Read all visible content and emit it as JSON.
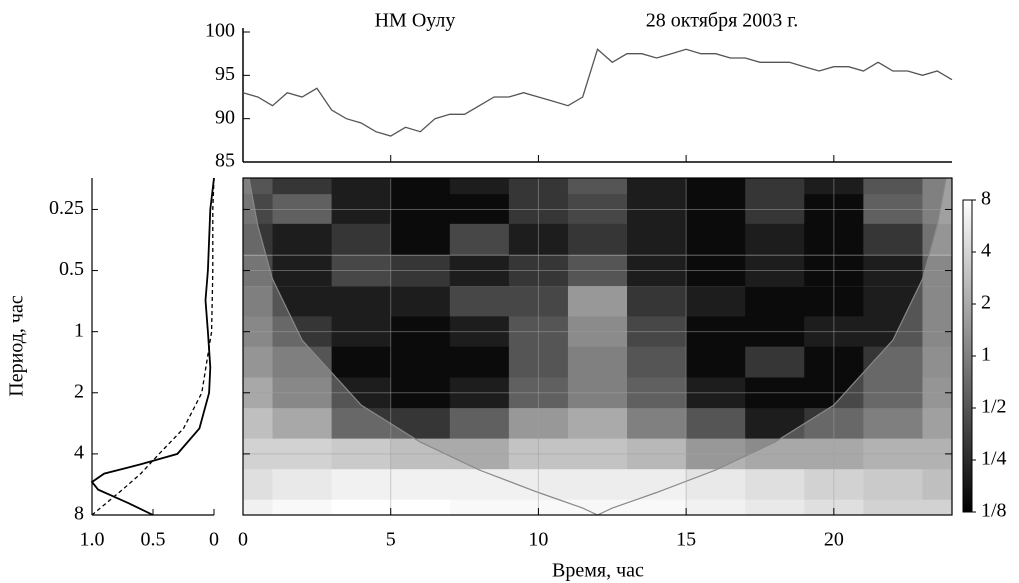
{
  "chart_data": [
    {
      "type": "line",
      "title": "НМ Оулу",
      "subtitle": "28 октября 2003 г.",
      "color": "#555555",
      "x": [
        0,
        0.5,
        1,
        1.5,
        2,
        2.5,
        3,
        3.5,
        4,
        4.5,
        5,
        5.5,
        6,
        6.5,
        7,
        7.5,
        8,
        8.5,
        9,
        9.5,
        10,
        10.5,
        11,
        11.5,
        12,
        12.5,
        13,
        13.5,
        14,
        14.5,
        15,
        15.5,
        16,
        16.5,
        17,
        17.5,
        18,
        18.5,
        19,
        19.5,
        20,
        20.5,
        21,
        21.5,
        22,
        22.5,
        23,
        23.5,
        24
      ],
      "values": [
        93,
        92.5,
        91.5,
        93,
        92.5,
        93.5,
        91,
        90,
        89.5,
        88.5,
        88,
        89,
        88.5,
        90,
        90.5,
        90.5,
        91.5,
        92.5,
        92.5,
        93,
        92.5,
        92,
        91.5,
        92.5,
        98,
        96.5,
        97.5,
        97.5,
        97,
        97.5,
        98,
        97.5,
        97.5,
        97,
        97,
        96.5,
        96.5,
        96.5,
        96,
        95.5,
        96,
        96,
        95.5,
        96.5,
        95.5,
        95.5,
        95,
        95.5,
        94.5
      ],
      "xlim": [
        0,
        24
      ],
      "xticks": [
        0,
        5,
        10,
        15,
        20
      ],
      "ylim": [
        85,
        100
      ],
      "yticks": [
        85,
        90,
        95,
        100
      ]
    },
    {
      "type": "heatmap",
      "x_label": "Время, час",
      "y_label": "Период, час",
      "x": [
        0,
        2,
        4,
        6,
        8,
        10,
        12,
        14,
        16,
        18,
        20,
        22,
        24
      ],
      "y": [
        0.18,
        0.25,
        0.35,
        0.5,
        0.71,
        1,
        1.41,
        2,
        2.83,
        4,
        5.66,
        8
      ],
      "z": [
        [
          0.5,
          0.3,
          0.2,
          0.15,
          0.2,
          0.3,
          0.5,
          0.2,
          0.15,
          0.3,
          0.2,
          0.5,
          1
        ],
        [
          0.4,
          0.6,
          0.2,
          0.15,
          0.15,
          0.3,
          0.4,
          0.2,
          0.15,
          0.3,
          0.15,
          0.6,
          1
        ],
        [
          0.3,
          0.2,
          0.3,
          0.15,
          0.4,
          0.2,
          0.3,
          0.2,
          0.15,
          0.2,
          0.15,
          0.3,
          0.8
        ],
        [
          0.4,
          0.2,
          0.4,
          0.3,
          0.2,
          0.3,
          0.5,
          0.2,
          0.15,
          0.2,
          0.15,
          0.2,
          0.6
        ],
        [
          0.5,
          0.2,
          0.2,
          0.2,
          0.4,
          0.4,
          1.5,
          0.3,
          0.2,
          0.15,
          0.15,
          0.2,
          0.6
        ],
        [
          0.6,
          0.3,
          0.2,
          0.15,
          0.2,
          0.5,
          1.2,
          0.4,
          0.15,
          0.15,
          0.2,
          0.2,
          0.6
        ],
        [
          0.8,
          0.5,
          0.15,
          0.15,
          0.15,
          0.5,
          1,
          0.5,
          0.15,
          0.3,
          0.15,
          0.3,
          0.7
        ],
        [
          1.2,
          0.6,
          0.2,
          0.15,
          0.2,
          0.6,
          1,
          0.6,
          0.2,
          0.15,
          0.15,
          0.3,
          0.8
        ],
        [
          2,
          1.2,
          0.3,
          0.3,
          0.6,
          1.5,
          2,
          1,
          0.5,
          0.2,
          0.3,
          0.5,
          1
        ],
        [
          3,
          3,
          2.5,
          2,
          2,
          3,
          3,
          2.5,
          1.5,
          1.2,
          1.2,
          1.5,
          1.5
        ],
        [
          4,
          5,
          6,
          6,
          6,
          6,
          6,
          6,
          5,
          4,
          3,
          2.5,
          2
        ],
        [
          6,
          7,
          8,
          8,
          7,
          7,
          7,
          7,
          6,
          5,
          4,
          3,
          3
        ]
      ],
      "xlim": [
        0,
        24
      ],
      "xticks": [
        0,
        5,
        10,
        15,
        20
      ],
      "ylim": [
        0.175,
        8
      ],
      "yticks": [
        0.25,
        0.5,
        1,
        2,
        4,
        8
      ],
      "log_y": true,
      "grid": true,
      "coi": {
        "color": "#888888",
        "x": [
          0.2,
          0.5,
          1,
          2,
          4,
          6,
          8,
          10,
          11.5,
          12,
          12.5,
          14,
          16,
          18,
          20,
          22,
          23,
          23.5,
          23.8
        ],
        "y": [
          0.175,
          0.3,
          0.55,
          1.1,
          2.3,
          3.5,
          4.8,
          6.2,
          7.4,
          8,
          7.4,
          6.2,
          4.8,
          3.5,
          2.3,
          1.1,
          0.55,
          0.3,
          0.175
        ]
      },
      "colorbar": {
        "lim": [
          0.125,
          8
        ],
        "log": true,
        "ticks": [
          {
            "value": 0.125,
            "label": "1/8"
          },
          {
            "value": 0.25,
            "label": "1/4"
          },
          {
            "value": 0.5,
            "label": "1/2"
          },
          1,
          2,
          4,
          8
        ]
      }
    },
    {
      "type": "profile",
      "series": [
        {
          "color": "#000000",
          "dashed": false,
          "x": [
            0,
            0.03,
            0.05,
            0.07,
            0.05,
            0.03,
            0.04,
            0.12,
            0.3,
            0.6,
            0.9,
            1.0,
            0.95,
            0.7,
            0.5
          ],
          "y": [
            0.175,
            0.25,
            0.5,
            0.7,
            1,
            1.5,
            2,
            3,
            4,
            4.5,
            5,
            5.5,
            6,
            7,
            8
          ]
        },
        {
          "color": "#000000",
          "dashed": true,
          "x": [
            0,
            0.01,
            0.01,
            0.02,
            0.1,
            0.25,
            0.45,
            0.6,
            0.75,
            1.0
          ],
          "y": [
            0.175,
            0.25,
            0.5,
            1,
            2,
            3,
            4,
            5,
            6,
            8
          ]
        }
      ],
      "xlim": [
        1,
        0
      ],
      "xticks": [
        {
          "value": 1,
          "label": "1.0"
        },
        0.5,
        0
      ],
      "ylim": [
        0.175,
        8
      ],
      "yticks": [
        0.25,
        0.5,
        1,
        2,
        4,
        8
      ],
      "log_y": true
    }
  ]
}
